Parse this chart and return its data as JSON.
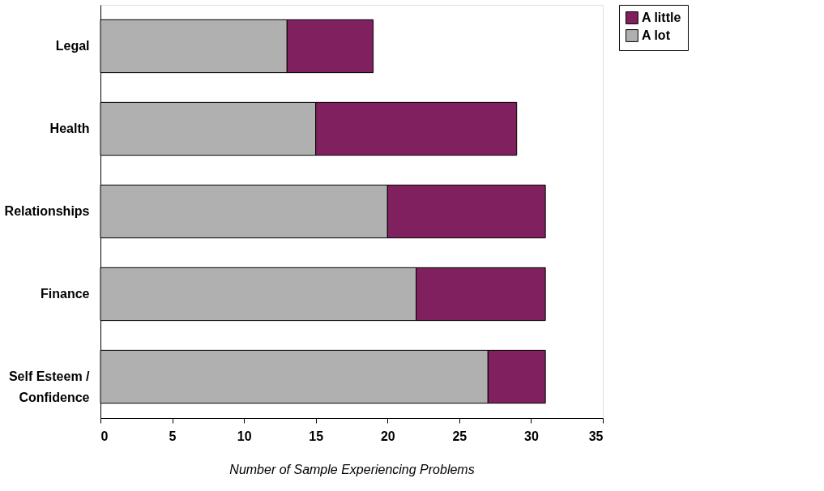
{
  "chart_data": {
    "type": "bar",
    "orientation": "horizontal",
    "stacked": true,
    "categories": [
      "Legal",
      "Health",
      "Relationships",
      "Finance",
      "Self Esteem /\nConfidence"
    ],
    "series": [
      {
        "name": "A lot",
        "color": "#b0b0b0",
        "values": [
          13,
          15,
          20,
          22,
          27
        ]
      },
      {
        "name": "A little",
        "color": "#80205f",
        "values": [
          6,
          14,
          11,
          9,
          4
        ]
      }
    ],
    "xlabel": "Number of Sample Experiencing Problems",
    "xlim": [
      0,
      35
    ],
    "xticks": [
      0,
      5,
      10,
      15,
      20,
      25,
      30,
      35
    ],
    "grid": false,
    "legend": "right"
  }
}
